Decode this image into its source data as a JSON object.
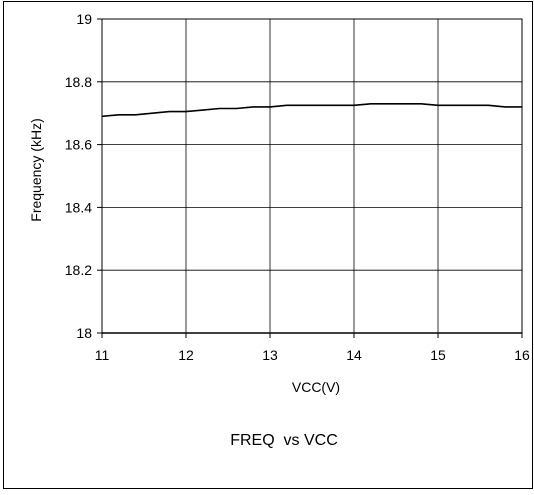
{
  "chart_data": {
    "type": "line",
    "title": "FREQ  vs VCC",
    "xlabel": "VCC(V)",
    "ylabel": "Frequency (kHz)",
    "xlim": [
      11,
      16
    ],
    "ylim": [
      18,
      19
    ],
    "x_ticks": [
      11,
      12,
      13,
      14,
      15,
      16
    ],
    "y_ticks": [
      "18",
      "18.2",
      "18.4",
      "18.6",
      "18.8",
      "19"
    ],
    "grid": true,
    "legend": "none",
    "series": [
      {
        "x": [
          11.0,
          11.2,
          11.4,
          11.6,
          11.8,
          12.0,
          12.2,
          12.4,
          12.6,
          12.8,
          13.0,
          13.2,
          13.4,
          13.6,
          13.8,
          14.0,
          14.2,
          14.4,
          14.6,
          14.8,
          15.0,
          15.2,
          15.4,
          15.6,
          15.8,
          16.0
        ],
        "values": [
          18.69,
          18.695,
          18.695,
          18.7,
          18.705,
          18.705,
          18.71,
          18.715,
          18.715,
          18.72,
          18.72,
          18.725,
          18.725,
          18.725,
          18.725,
          18.725,
          18.73,
          18.73,
          18.73,
          18.73,
          18.725,
          18.725,
          18.725,
          18.725,
          18.72,
          18.72
        ]
      }
    ],
    "line_color": "#000000",
    "grid_color": "#000000"
  }
}
